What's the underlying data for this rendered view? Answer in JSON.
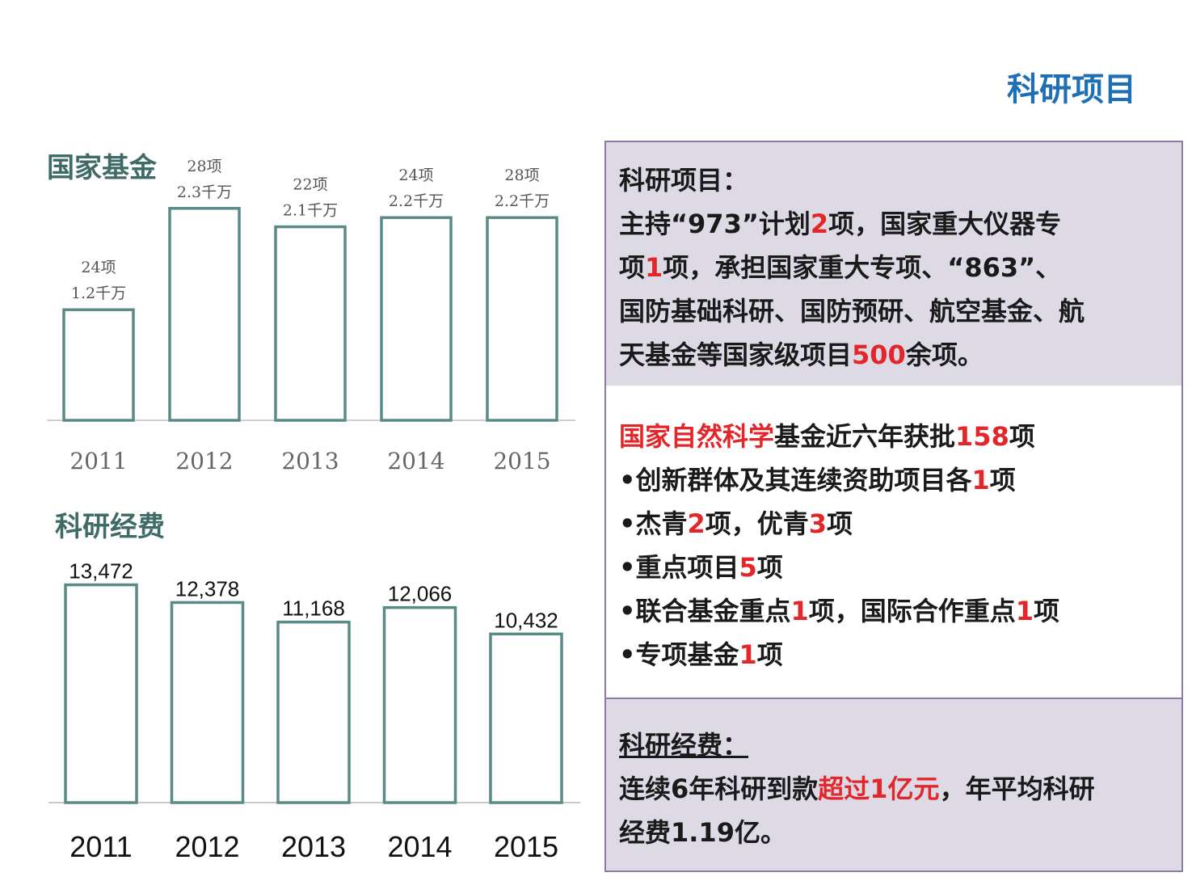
{
  "page_title": "科研项目",
  "chart_data": [
    {
      "type": "bar",
      "title": "国家基金",
      "categories": [
        "2011",
        "2012",
        "2013",
        "2014",
        "2015"
      ],
      "values": [
        1.2,
        2.3,
        2.1,
        2.2,
        2.2
      ],
      "labels_top": [
        "24项",
        "28项",
        "22项",
        "24项",
        "28项"
      ],
      "labels_bottom": [
        "1.2千万",
        "2.3千万",
        "2.1千万",
        "2.2千万",
        "2.2千万"
      ],
      "ylim": [
        0,
        2.5
      ]
    },
    {
      "type": "bar",
      "title": "科研经费",
      "categories": [
        "2011",
        "2012",
        "2013",
        "2014",
        "2015"
      ],
      "values": [
        13472,
        12378,
        11168,
        12066,
        10432
      ],
      "data_labels": [
        "13,472",
        "12,378",
        "11,168",
        "12,066",
        "10,432"
      ],
      "ylim": [
        0,
        14500
      ]
    }
  ],
  "colors": {
    "bar_stroke": "#5a8b86",
    "accent_red": "#e2262a",
    "title_blue": "#1f6fb5",
    "panel_bg": "#dddae6",
    "panel_border": "#8d7ba6"
  },
  "panel1": {
    "heading": "科研项目：",
    "l1a": "主持“973”计划",
    "l1b": "2",
    "l1c": "项，国家重大仪器专",
    "l2a": "项",
    "l2b": "1",
    "l2c": "项，承担国家重大专项、“863”、",
    "l3": "国防基础科研、国防预研、航空基金、航",
    "l4a": "天基金等国家级项目",
    "l4b": "500",
    "l4c": "余项。"
  },
  "panel2": {
    "l1a": "国家自然科学",
    "l1b": "基金近六年获批",
    "l1c": "158",
    "l1d": "项",
    "l2a": "•创新群体及其连续资助项目各",
    "l2b": "1",
    "l2c": "项",
    "l3a": "•杰青",
    "l3b": "2",
    "l3c": "项，优青",
    "l3d": "3",
    "l3e": "项",
    "l4a": "•重点项目",
    "l4b": "5",
    "l4c": "项",
    "l5a": "•联合基金重点",
    "l5b": "1",
    "l5c": "项，国际合作重点",
    "l5d": "1",
    "l5e": "项",
    "l6a": "•专项基金",
    "l6b": "1",
    "l6c": "项"
  },
  "panel3": {
    "heading": "科研经费：",
    "l1a": "连续6年科研到款",
    "l1b": "超过1亿元",
    "l1c": "，年平均科研",
    "l2": "经费1.19亿。"
  }
}
